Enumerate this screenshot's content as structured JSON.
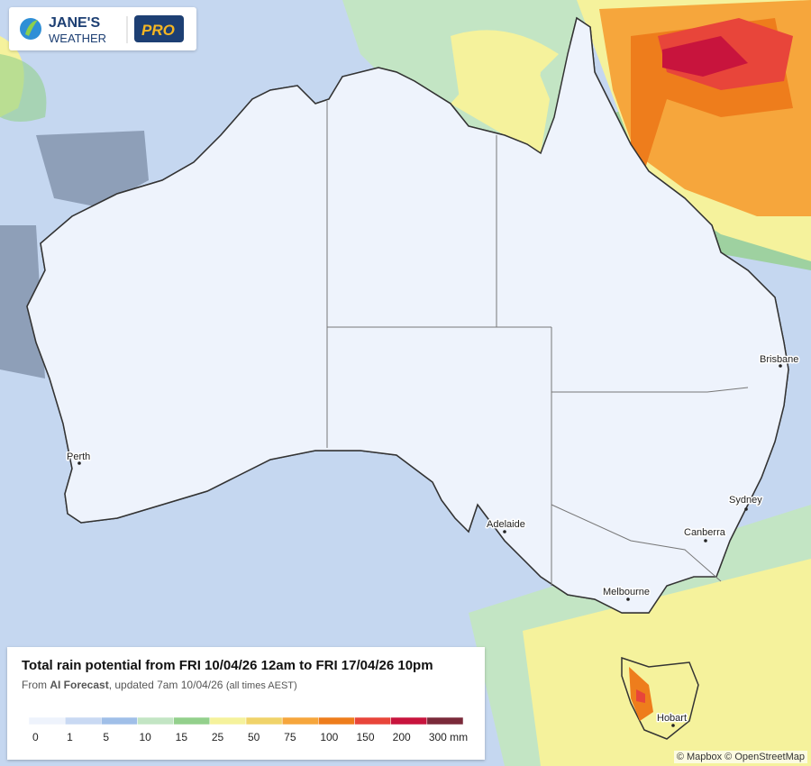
{
  "logo": {
    "brand_line1": "JANE'S",
    "brand_line2": "WEATHER",
    "badge": "PRO"
  },
  "cities": [
    "Perth",
    "Adelaide",
    "Melbourne",
    "Canberra",
    "Sydney",
    "Brisbane",
    "Hobart"
  ],
  "legend": {
    "title": "Total rain potential from FRI 10/04/26 12am to FRI 17/04/26 10pm",
    "source_prefix": "From ",
    "source_model": "AI Forecast",
    "source_suffix": ", updated 7am 10/04/26",
    "source_note": "(all times AEST)",
    "scale": [
      {
        "label": "0",
        "color": "#eef3fc"
      },
      {
        "label": "1",
        "color": "#c9d9f3"
      },
      {
        "label": "5",
        "color": "#a0bfe8"
      },
      {
        "label": "10",
        "color": "#c3e5c4"
      },
      {
        "label": "15",
        "color": "#93d08c"
      },
      {
        "label": "25",
        "color": "#f5f29c"
      },
      {
        "label": "50",
        "color": "#f0d36a"
      },
      {
        "label": "75",
        "color": "#f6a63c"
      },
      {
        "label": "100",
        "color": "#ee7d1c"
      },
      {
        "label": "150",
        "color": "#e8453a"
      },
      {
        "label": "200",
        "color": "#c8143d"
      },
      {
        "label": "300 mm",
        "color": "#7a2a3a"
      }
    ]
  },
  "attribution": "© Mapbox © OpenStreetMap"
}
